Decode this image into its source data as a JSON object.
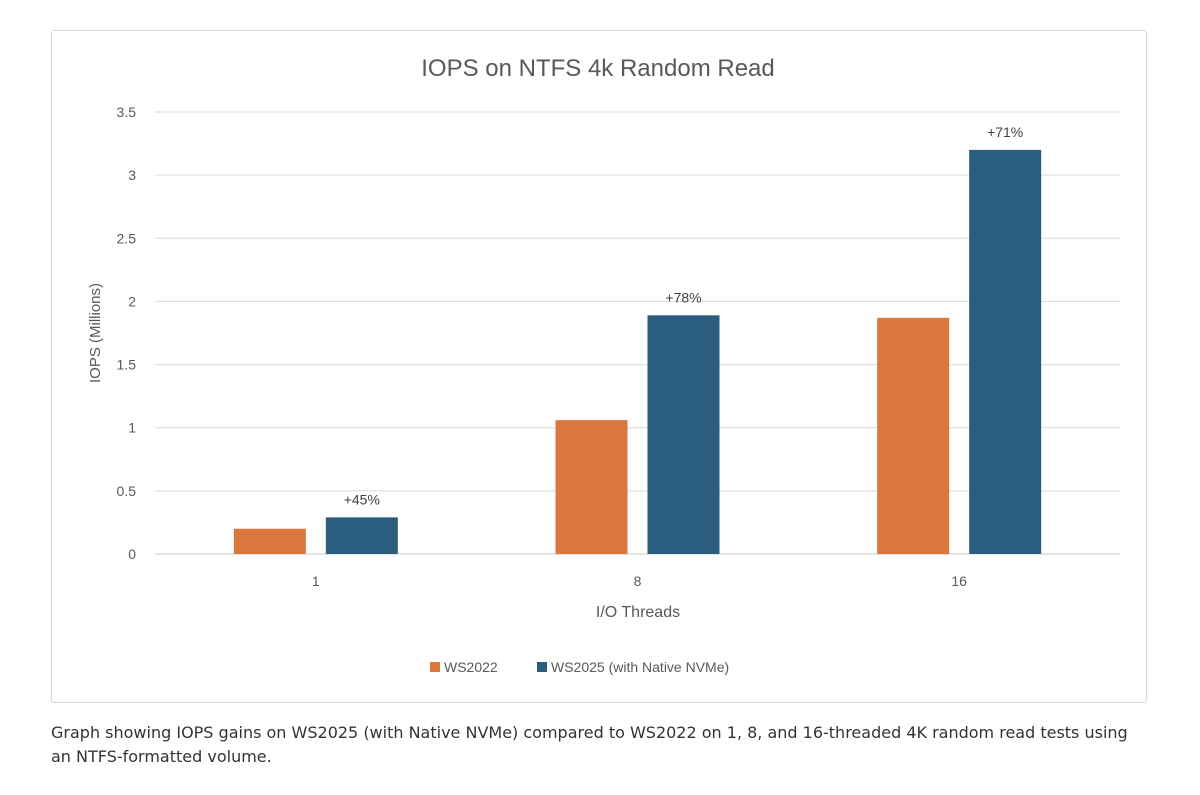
{
  "chart_data": {
    "type": "bar",
    "title": "IOPS on NTFS 4k Random Read",
    "xlabel": "I/O Threads",
    "ylabel": "IOPS (Millions)",
    "categories": [
      "1",
      "8",
      "16"
    ],
    "series": [
      {
        "name": "WS2022",
        "color": "#d9773f",
        "values": [
          0.2,
          1.06,
          1.87
        ]
      },
      {
        "name": "WS2025 (with Native NVMe)",
        "color": "#2b5d7f",
        "values": [
          0.29,
          1.89,
          3.2
        ]
      }
    ],
    "annotations": [
      "+45%",
      "+78%",
      "+71%"
    ],
    "ylim": [
      0,
      3.5
    ],
    "yticks": [
      "0",
      "0.5",
      "1",
      "1.5",
      "2",
      "2.5",
      "3",
      "3.5"
    ],
    "grid": true,
    "legend": "bottom"
  },
  "caption": "Graph showing IOPS gains on WS2025 (with Native NVMe) compared to WS2022 on 1, 8, and 16-threaded 4K random read tests using an NTFS-formatted volume."
}
